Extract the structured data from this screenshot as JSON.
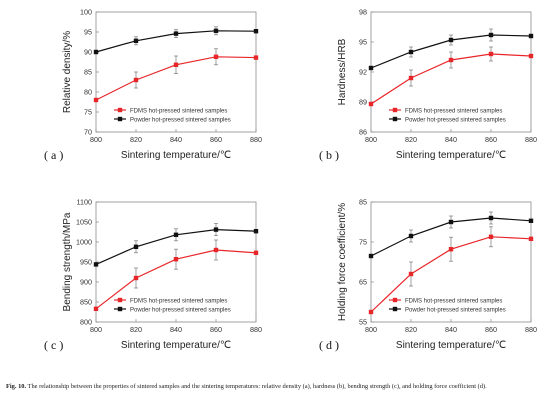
{
  "chart_data": [
    {
      "id": "a",
      "type": "line",
      "panel_label": "( a )",
      "xlabel": "Sintering temperature/℃",
      "ylabel": "Relative density/%",
      "x": [
        800,
        820,
        840,
        860,
        880
      ],
      "xlim": [
        800,
        880
      ],
      "xticks": [
        800,
        820,
        840,
        860,
        880
      ],
      "ylim": [
        70,
        100
      ],
      "yticks": [
        70,
        75,
        80,
        85,
        90,
        95,
        100
      ],
      "legend_position": "bottom-center",
      "series": [
        {
          "name": "FDMS hot-pressed sintered samples",
          "color": "#e8262a",
          "values": [
            78.0,
            83.0,
            86.8,
            88.8,
            88.6
          ],
          "errors": [
            0,
            2.0,
            2.2,
            2.0,
            0
          ]
        },
        {
          "name": "Powder hot-pressed sintered samples",
          "color": "#111111",
          "values": [
            90.0,
            92.8,
            94.6,
            95.3,
            95.2
          ],
          "errors": [
            0,
            1.0,
            1.0,
            1.0,
            0
          ]
        }
      ]
    },
    {
      "id": "b",
      "type": "line",
      "panel_label": "( b )",
      "xlabel": "Sintering temperature/℃",
      "ylabel": "Hardness/HRB",
      "x": [
        800,
        820,
        840,
        860,
        880
      ],
      "xlim": [
        800,
        880
      ],
      "xticks": [
        800,
        820,
        840,
        860,
        880
      ],
      "ylim": [
        86,
        98
      ],
      "yticks": [
        86,
        89,
        92,
        95,
        98
      ],
      "legend_position": "bottom-center",
      "series": [
        {
          "name": "FDMS hot-pressed sintered samples",
          "color": "#e8262a",
          "values": [
            88.8,
            91.4,
            93.2,
            93.8,
            93.6
          ],
          "errors": [
            0,
            0.8,
            0.8,
            0.7,
            0
          ]
        },
        {
          "name": "Powder hot-pressed sintered samples",
          "color": "#111111",
          "values": [
            92.4,
            94.0,
            95.2,
            95.7,
            95.6
          ],
          "errors": [
            0,
            0.5,
            0.5,
            0.6,
            0
          ]
        }
      ]
    },
    {
      "id": "c",
      "type": "line",
      "panel_label": "( c )",
      "xlabel": "Sintering temperature/℃",
      "ylabel": "Bending strength/MPa",
      "x": [
        800,
        820,
        840,
        860,
        880
      ],
      "xlim": [
        800,
        880
      ],
      "xticks": [
        800,
        820,
        840,
        860,
        880
      ],
      "ylim": [
        800,
        1100
      ],
      "yticks": [
        800,
        850,
        900,
        950,
        1000,
        1050,
        1100
      ],
      "legend_position": "bottom-center",
      "series": [
        {
          "name": "FDMS hot-pressed sintered samples",
          "color": "#e8262a",
          "values": [
            833,
            910,
            957,
            980,
            973
          ],
          "errors": [
            0,
            25,
            25,
            25,
            0
          ]
        },
        {
          "name": "Powder hot-pressed sintered samples",
          "color": "#111111",
          "values": [
            944,
            988,
            1018,
            1031,
            1027
          ],
          "errors": [
            0,
            15,
            15,
            15,
            0
          ]
        }
      ]
    },
    {
      "id": "d",
      "type": "line",
      "panel_label": "( d )",
      "xlabel": "Sintering temperature/℃",
      "ylabel": "Holding force coefficient/%",
      "x": [
        800,
        820,
        840,
        860,
        880
      ],
      "xlim": [
        800,
        880
      ],
      "xticks": [
        800,
        820,
        840,
        860,
        880
      ],
      "ylim": [
        55,
        85
      ],
      "yticks": [
        55,
        65,
        75,
        85
      ],
      "legend_position": "bottom-center",
      "series": [
        {
          "name": "FDMS hot-pressed sintered samples",
          "color": "#e8262a",
          "values": [
            57.5,
            67.0,
            73.2,
            76.3,
            75.8
          ],
          "errors": [
            0,
            3.0,
            3.0,
            2.5,
            0
          ]
        },
        {
          "name": "Powder hot-pressed sintered samples",
          "color": "#111111",
          "values": [
            71.5,
            76.5,
            80.0,
            81.0,
            80.3
          ],
          "errors": [
            0,
            1.5,
            1.5,
            1.5,
            0
          ]
        }
      ]
    }
  ],
  "caption": {
    "label": "Fig. 10.",
    "text": "The relationship between the properties of sintered samples and the sintering temperatures: relative density (a), hardness (b), bending strength (c), and holding force coefficient (d)."
  }
}
